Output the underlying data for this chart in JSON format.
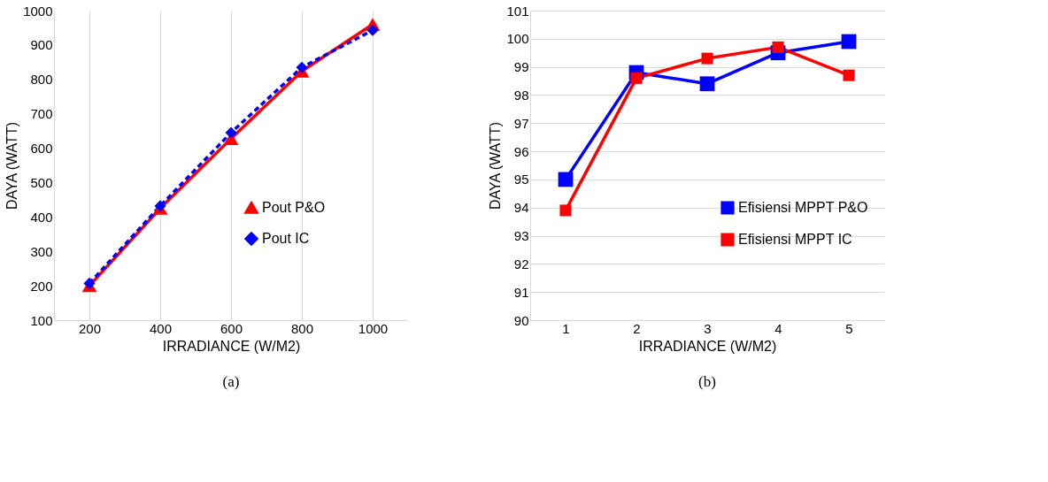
{
  "chart_data": [
    {
      "type": "line",
      "xlabel": "IRRADIANCE (W/M2)",
      "ylabel": "DAYA (WATT)",
      "categories": [
        "200",
        "400",
        "600",
        "800",
        "1000"
      ],
      "ylim": [
        100,
        1000
      ],
      "yticks": [
        100,
        200,
        300,
        400,
        500,
        600,
        700,
        800,
        900,
        1000
      ],
      "grid": "x",
      "legend": "bottom right",
      "annotations": [
        "(a)"
      ],
      "series": [
        {
          "name": "Pout P&O",
          "color": "#ff0000",
          "marker": "triangle",
          "line_style": "solid",
          "values": [
            200,
            425,
            628,
            824,
            960
          ]
        },
        {
          "name": "Pout IC",
          "color": "#0000ff",
          "marker": "diamond",
          "line_style": "dashed",
          "values": [
            207,
            432,
            645,
            835,
            943
          ]
        }
      ]
    },
    {
      "type": "line",
      "xlabel": "IRRADIANCE (W/M2)",
      "ylabel": "DAYA (WATT)",
      "categories": [
        "1",
        "2",
        "3",
        "4",
        "5"
      ],
      "ylim": [
        90,
        101
      ],
      "yticks": [
        90,
        91,
        92,
        93,
        94,
        95,
        96,
        97,
        98,
        99,
        100,
        101
      ],
      "grid": "y",
      "legend": "bottom right",
      "annotations": [
        "(b)"
      ],
      "marker": "square",
      "line_style": "solid",
      "series": [
        {
          "name": "Efisiensi MPPT P&O",
          "color": "#0000ff",
          "values": [
            95.0,
            98.8,
            98.4,
            99.5,
            99.9
          ]
        },
        {
          "name": "Efisiensi MPPT IC",
          "color": "#ff0000",
          "values": [
            93.9,
            98.6,
            99.3,
            99.7,
            98.7
          ]
        }
      ]
    }
  ]
}
